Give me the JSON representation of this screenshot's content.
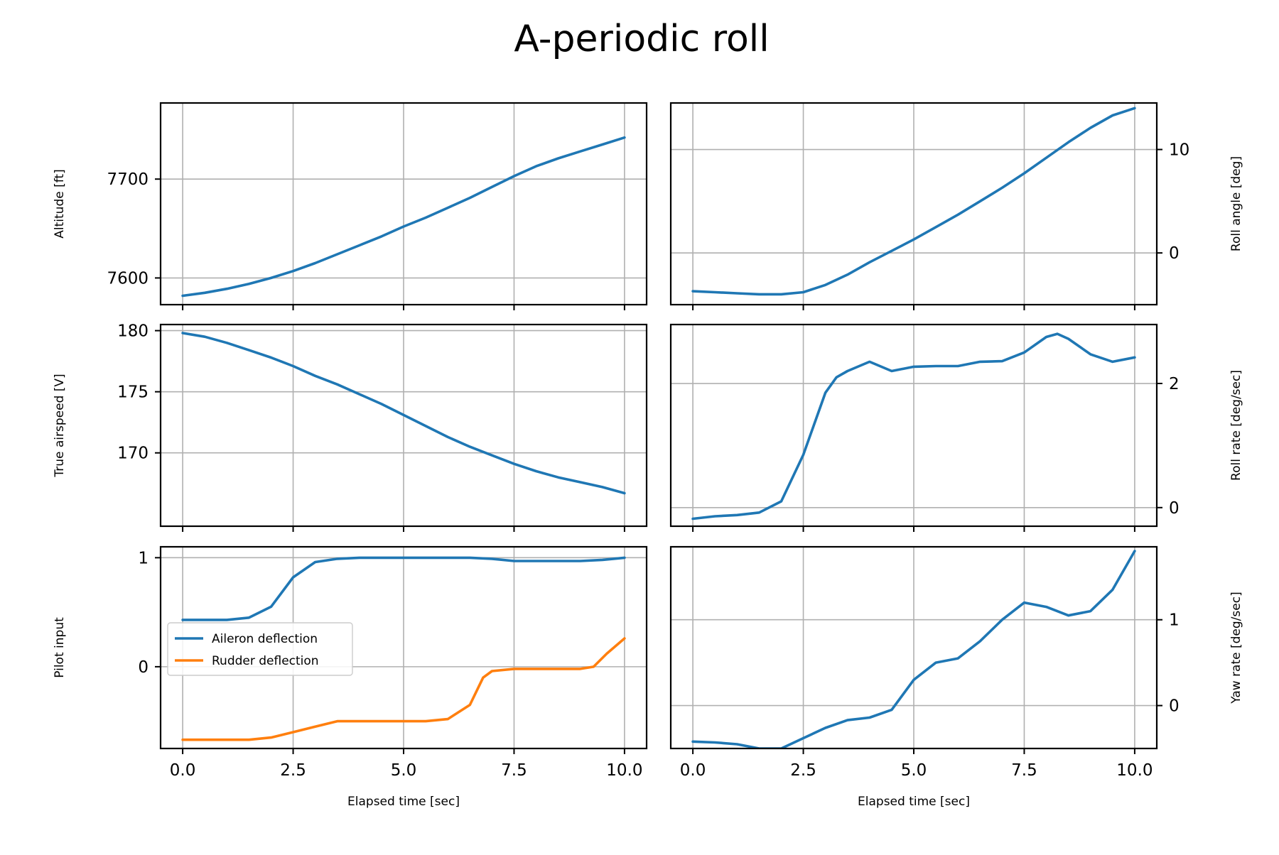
{
  "title": "A-periodic roll",
  "colors": {
    "series1": "#1f77b4",
    "series2": "#ff7f0e",
    "grid": "#b0b0b0",
    "axis": "#000000"
  },
  "chart_data": [
    {
      "id": "altitude",
      "type": "line",
      "xlabel": "",
      "ylabel": "Altitude [ft]",
      "yaxis_side": "left",
      "xlim": [
        -0.5,
        10.5
      ],
      "ylim": [
        7573,
        7777
      ],
      "grid": true,
      "xticks": [
        0,
        2.5,
        5,
        7.5,
        10
      ],
      "xtick_labels": [],
      "yticks": [
        7600,
        7700
      ],
      "ytick_labels": [
        "7600",
        "7700"
      ],
      "series": [
        {
          "color": "#1f77b4",
          "x": [
            0,
            0.5,
            1,
            1.5,
            2,
            2.5,
            3,
            3.5,
            4,
            4.5,
            5,
            5.5,
            6,
            6.5,
            7,
            7.5,
            8,
            8.5,
            9,
            9.5,
            10
          ],
          "y": [
            7582,
            7585,
            7589,
            7594,
            7600,
            7607,
            7615,
            7624,
            7633,
            7642,
            7652,
            7661,
            7671,
            7681,
            7692,
            7703,
            7713,
            7721,
            7728,
            7735,
            7742
          ]
        }
      ]
    },
    {
      "id": "roll-angle",
      "type": "line",
      "xlabel": "",
      "ylabel": "Roll angle [deg]",
      "yaxis_side": "right",
      "xlim": [
        -0.5,
        10.5
      ],
      "ylim": [
        -5,
        14.5
      ],
      "grid": true,
      "xticks": [
        0,
        2.5,
        5,
        7.5,
        10
      ],
      "xtick_labels": [],
      "yticks": [
        0,
        10
      ],
      "ytick_labels": [
        "0",
        "10"
      ],
      "series": [
        {
          "color": "#1f77b4",
          "x": [
            0,
            0.5,
            1,
            1.5,
            2,
            2.5,
            3,
            3.5,
            4,
            4.5,
            5,
            5.5,
            6,
            6.5,
            7,
            7.5,
            8,
            8.5,
            9,
            9.5,
            10
          ],
          "y": [
            -3.7,
            -3.8,
            -3.9,
            -4.0,
            -4.0,
            -3.8,
            -3.1,
            -2.1,
            -0.9,
            0.2,
            1.3,
            2.5,
            3.7,
            5.0,
            6.3,
            7.7,
            9.2,
            10.7,
            12.1,
            13.3,
            14.0
          ]
        }
      ]
    },
    {
      "id": "airspeed",
      "type": "line",
      "xlabel": "",
      "ylabel": "True airspeed [V]",
      "yaxis_side": "left",
      "xlim": [
        -0.5,
        10.5
      ],
      "ylim": [
        164.0,
        180.5
      ],
      "grid": true,
      "xticks": [
        0,
        2.5,
        5,
        7.5,
        10
      ],
      "xtick_labels": [],
      "yticks": [
        170,
        175,
        180
      ],
      "ytick_labels": [
        "170",
        "175",
        "180"
      ],
      "series": [
        {
          "color": "#1f77b4",
          "x": [
            0,
            0.5,
            1,
            1.5,
            2,
            2.5,
            3,
            3.5,
            4,
            4.5,
            5,
            5.5,
            6,
            6.5,
            7,
            7.5,
            8,
            8.5,
            9,
            9.5,
            10
          ],
          "y": [
            179.8,
            179.5,
            179.0,
            178.4,
            177.8,
            177.1,
            176.3,
            175.6,
            174.8,
            174.0,
            173.1,
            172.2,
            171.3,
            170.5,
            169.8,
            169.1,
            168.5,
            168.0,
            167.6,
            167.2,
            166.7
          ]
        }
      ]
    },
    {
      "id": "roll-rate",
      "type": "line",
      "xlabel": "",
      "ylabel": "Roll rate [deg/sec]",
      "yaxis_side": "right",
      "xlim": [
        -0.5,
        10.5
      ],
      "ylim": [
        -0.3,
        2.95
      ],
      "grid": true,
      "xticks": [
        0,
        2.5,
        5,
        7.5,
        10
      ],
      "xtick_labels": [],
      "yticks": [
        0,
        2
      ],
      "ytick_labels": [
        "0",
        "2"
      ],
      "series": [
        {
          "color": "#1f77b4",
          "x": [
            0,
            0.5,
            1,
            1.5,
            2,
            2.5,
            3,
            3.25,
            3.5,
            4,
            4.5,
            5,
            5.5,
            6,
            6.5,
            7,
            7.5,
            8,
            8.25,
            8.5,
            9,
            9.5,
            10
          ],
          "y": [
            -0.18,
            -0.14,
            -0.12,
            -0.08,
            0.1,
            0.85,
            1.85,
            2.1,
            2.2,
            2.35,
            2.2,
            2.27,
            2.28,
            2.28,
            2.35,
            2.36,
            2.5,
            2.75,
            2.8,
            2.72,
            2.47,
            2.35,
            2.42
          ]
        }
      ]
    },
    {
      "id": "pilot-input",
      "type": "line",
      "xlabel": "Elapsed time [sec]",
      "ylabel": "Pilot input",
      "yaxis_side": "left",
      "xlim": [
        -0.5,
        10.5
      ],
      "ylim": [
        -0.75,
        1.1
      ],
      "grid": true,
      "xticks": [
        0,
        2.5,
        5,
        7.5,
        10
      ],
      "xtick_labels": [
        "0.0",
        "2.5",
        "5.0",
        "7.5",
        "10.0"
      ],
      "yticks": [
        0,
        1
      ],
      "ytick_labels": [
        "0",
        "1"
      ],
      "legend": {
        "placement": "center-left"
      },
      "series": [
        {
          "name": "Aileron deflection",
          "color": "#1f77b4",
          "x": [
            0,
            0.5,
            1,
            1.5,
            2,
            2.5,
            3,
            3.5,
            4,
            4.5,
            5,
            5.5,
            6,
            6.5,
            7,
            7.5,
            8,
            8.5,
            9,
            9.5,
            10
          ],
          "y": [
            0.43,
            0.43,
            0.43,
            0.45,
            0.55,
            0.82,
            0.96,
            0.99,
            1.0,
            1.0,
            1.0,
            1.0,
            1.0,
            1.0,
            0.99,
            0.97,
            0.97,
            0.97,
            0.97,
            0.98,
            1.0
          ]
        },
        {
          "name": "Rudder deflection",
          "color": "#ff7f0e",
          "x": [
            0,
            0.5,
            1,
            1.5,
            2,
            2.5,
            3,
            3.5,
            4,
            4.5,
            5,
            5.5,
            6,
            6.5,
            6.8,
            7,
            7.5,
            8,
            8.5,
            9,
            9.3,
            9.6,
            10
          ],
          "y": [
            -0.67,
            -0.67,
            -0.67,
            -0.67,
            -0.65,
            -0.6,
            -0.55,
            -0.5,
            -0.5,
            -0.5,
            -0.5,
            -0.5,
            -0.48,
            -0.35,
            -0.1,
            -0.04,
            -0.02,
            -0.02,
            -0.02,
            -0.02,
            0.0,
            0.12,
            0.26
          ]
        }
      ]
    },
    {
      "id": "yaw-rate",
      "type": "line",
      "xlabel": "Elapsed time [sec]",
      "ylabel": "Yaw rate [deg/sec]",
      "yaxis_side": "right",
      "xlim": [
        -0.5,
        10.5
      ],
      "ylim": [
        -0.5,
        1.85
      ],
      "grid": true,
      "xticks": [
        0,
        2.5,
        5,
        7.5,
        10
      ],
      "xtick_labels": [
        "0.0",
        "2.5",
        "5.0",
        "7.5",
        "10.0"
      ],
      "yticks": [
        0,
        1
      ],
      "ytick_labels": [
        "0",
        "1"
      ],
      "series": [
        {
          "color": "#1f77b4",
          "x": [
            0,
            0.5,
            1,
            1.5,
            2,
            2.5,
            3,
            3.5,
            4,
            4.5,
            5,
            5.5,
            6,
            6.5,
            7,
            7.5,
            8,
            8.5,
            9,
            9.5,
            10
          ],
          "y": [
            -0.42,
            -0.43,
            -0.45,
            -0.5,
            -0.5,
            -0.38,
            -0.26,
            -0.17,
            -0.14,
            -0.05,
            0.3,
            0.5,
            0.55,
            0.75,
            1.0,
            1.2,
            1.15,
            1.05,
            1.1,
            1.35,
            1.8
          ]
        }
      ]
    }
  ]
}
